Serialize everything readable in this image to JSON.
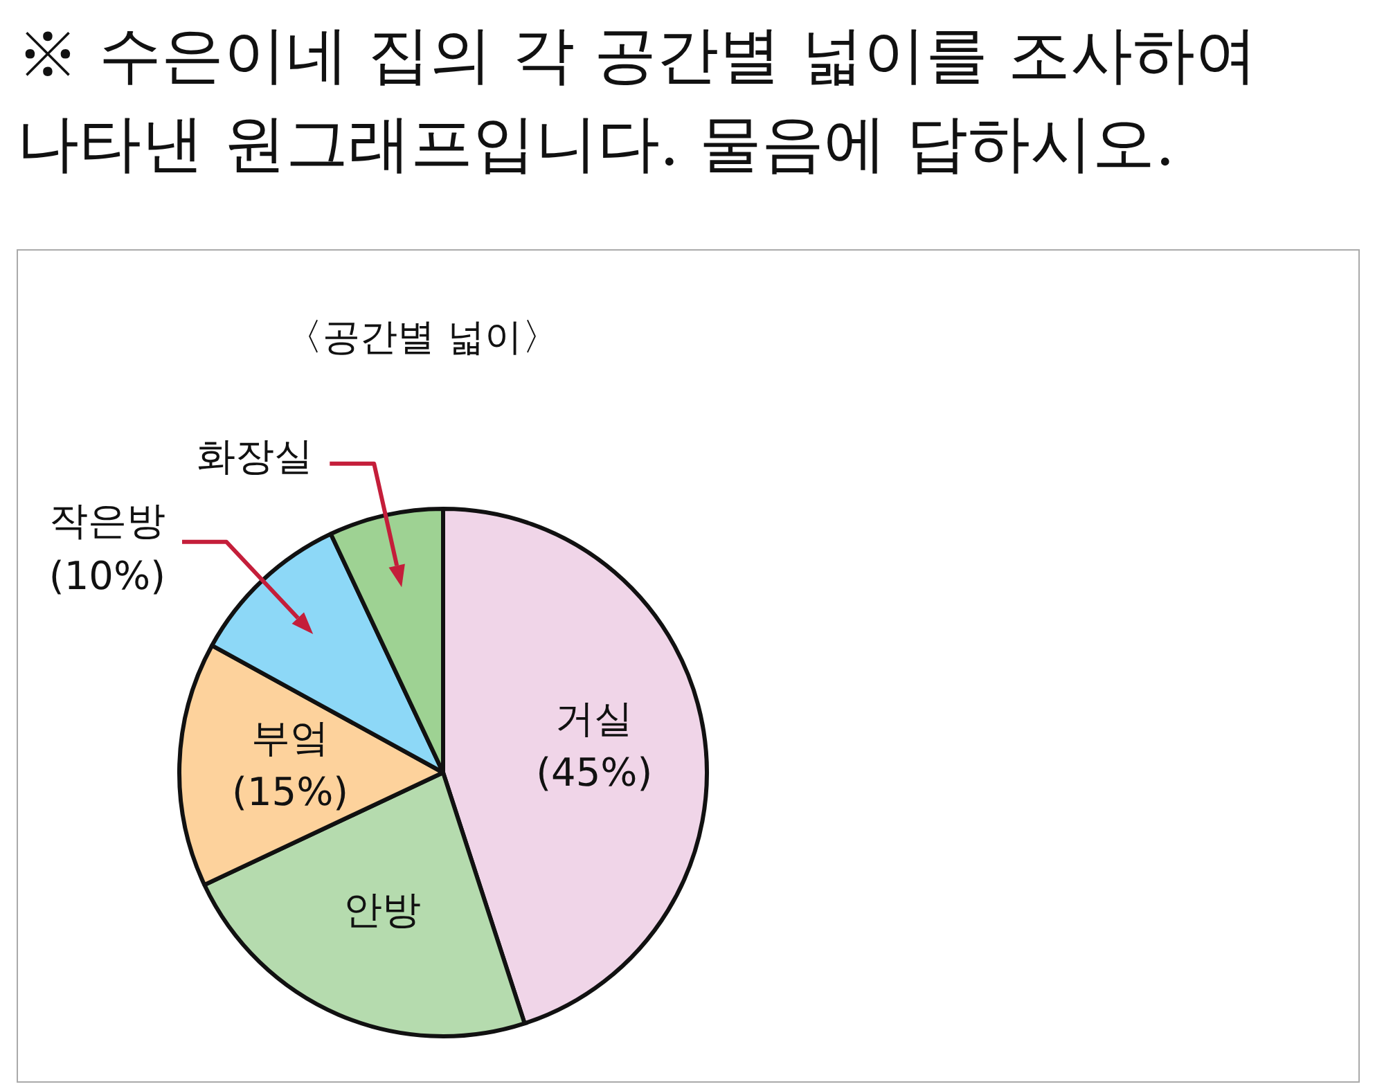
{
  "chart_data": {
    "type": "pie",
    "title": "〈공간별 넓이〉",
    "categories": [
      "거실",
      "안방",
      "부엌",
      "작은방",
      "화장실"
    ],
    "values": [
      45,
      23,
      15,
      10,
      7
    ],
    "colors": [
      "#f0d5e8",
      "#b5dbae",
      "#fdd29c",
      "#8dd8f7",
      "#9ed293"
    ],
    "value_labels": [
      "(45%)",
      null,
      "(15%)",
      "(10%)",
      null
    ],
    "annotations": [
      "※ 수은이네 집의 각 공간별 넓이를 조사하여 나타낸 원그래프입니다. 물음에 답하시오."
    ]
  }
}
